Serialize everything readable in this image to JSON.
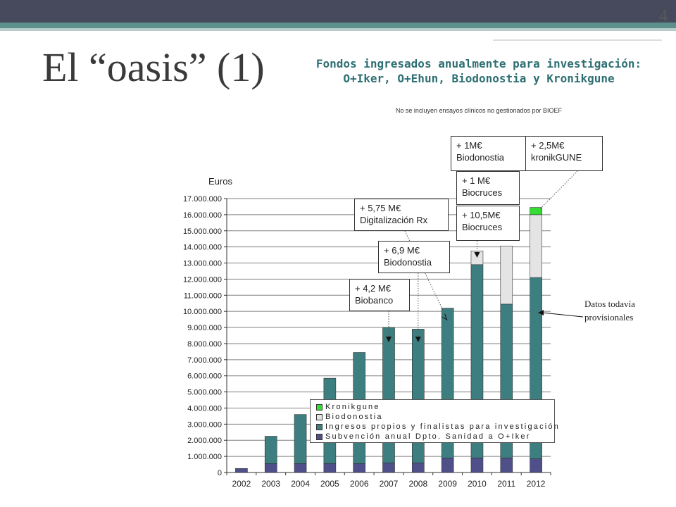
{
  "slide": {
    "page_number": "4",
    "title": "El “oasis” (1)"
  },
  "chart_data": {
    "type": "bar",
    "stacked": true,
    "title": "Fondos ingresados anualmente para investigación: O+Iker, O+Ehun, Biodonostia y Kronikgune",
    "subtitle": "No se incluyen ensayos clínicos no gestionados por BIOEF",
    "ylabel": "Euros",
    "xlabel": "",
    "ylim": [
      0,
      17000000
    ],
    "ytick_step": 1000000,
    "yticks": [
      "0",
      "1.000.000",
      "2.000.000",
      "3.000.000",
      "4.000.000",
      "5.000.000",
      "6.000.000",
      "7.000.000",
      "8.000.000",
      "9.000.000",
      "10.000.000",
      "11.000.000",
      "12.000.000",
      "13.000.000",
      "14.000.000",
      "15.000.000",
      "16.000.000",
      "17.000.000"
    ],
    "categories": [
      "2002",
      "2003",
      "2004",
      "2005",
      "2006",
      "2007",
      "2008",
      "2009",
      "2010",
      "2011",
      "2012"
    ],
    "series": [
      {
        "name": "Subvención anual Dpto. Sanidad a O+Iker",
        "color": "#4f4f8a",
        "values": [
          250000,
          550000,
          550000,
          550000,
          550000,
          600000,
          600000,
          900000,
          900000,
          900000,
          850000
        ]
      },
      {
        "name": "Ingresos propios y finalistas para investigación",
        "color": "#3d7f80",
        "values": [
          0,
          1700000,
          3050000,
          5300000,
          6900000,
          8400000,
          8300000,
          9300000,
          12000000,
          9550000,
          11250000
        ]
      },
      {
        "name": "Biodonostia",
        "color": "#e4e4e4",
        "values": [
          0,
          0,
          0,
          0,
          0,
          0,
          0,
          0,
          850000,
          3600000,
          3900000
        ]
      },
      {
        "name": "Kronikgune",
        "color": "#33dd33",
        "values": [
          0,
          0,
          0,
          0,
          0,
          0,
          0,
          0,
          0,
          0,
          450000
        ]
      }
    ],
    "legend_position": "inside-bottom-right",
    "grid": true
  },
  "annotations": [
    {
      "id": "biobanco",
      "text": "+ 4,2 M€\nBiobanco"
    },
    {
      "id": "biodonostia-69",
      "text": "+ 6,9 M€\nBiodonostia"
    },
    {
      "id": "digitalizacion",
      "text": "+ 5,75 M€\nDigitalización Rx"
    },
    {
      "id": "biocruces-105",
      "text": "+ 10,5M€\nBiocruces"
    },
    {
      "id": "biocruces-1",
      "text": "+ 1 M€\nBiocruces"
    },
    {
      "id": "biodonostia-1",
      "text": "+ 1M€\nBiodonostia"
    },
    {
      "id": "kronikgune",
      "text": "+ 2,5M€\nkronikGUNE"
    }
  ],
  "note": "Datos todavía\nprovisionales"
}
